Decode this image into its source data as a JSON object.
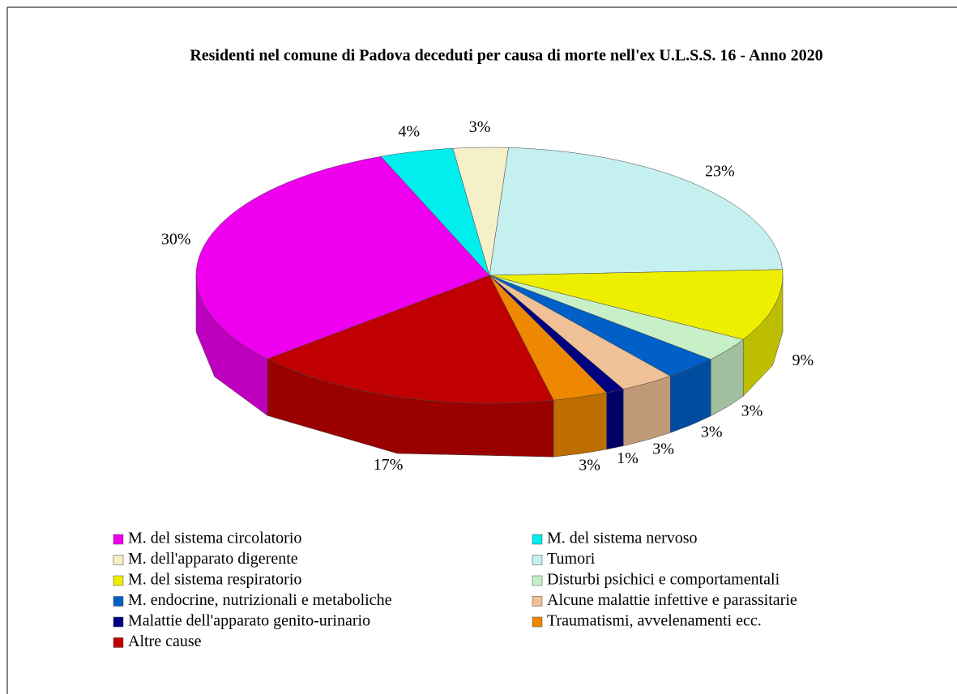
{
  "chart_data": {
    "type": "pie",
    "title": "Residenti nel comune di Padova deceduti per causa di morte nell'ex U.L.S.S. 16 - Anno 2020",
    "categories": [
      "M. del sistema circolatorio",
      "M. del sistema nervoso",
      "M. dell'apparato digerente",
      "Tumori",
      "M. del sistema respiratorio",
      "Disturbi psichici e comportamentali",
      "M. endocrine, nutrizionali e metaboliche",
      "Alcune malattie infettive e parassitarie",
      "Malattie dell'apparato genito-urinario",
      "Traumatismi, avvelenamenti ecc.",
      "Altre cause"
    ],
    "values": [
      30,
      4,
      3,
      23,
      9,
      3,
      3,
      3,
      1,
      3,
      17
    ],
    "value_labels": [
      "30%",
      "4%",
      "3%",
      "23%",
      "9%",
      "3%",
      "3%",
      "3%",
      "1%",
      "3%",
      "17%"
    ],
    "colors": [
      "#ee00ee",
      "#00eeee",
      "#f5f0c8",
      "#c4f0f0",
      "#eeee00",
      "#c8f0c8",
      "#0060c8",
      "#f0c096",
      "#000080",
      "#ee8800",
      "#c00000"
    ]
  }
}
